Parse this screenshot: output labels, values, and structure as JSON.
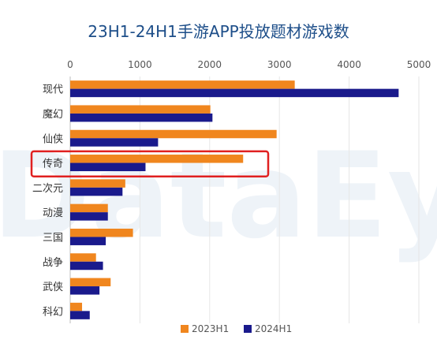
{
  "chart_data": {
    "type": "bar",
    "orientation": "horizontal",
    "title": "23H1-24H1手游APP投放题材游戏数",
    "categories": [
      "现代",
      "魔幻",
      "仙侠",
      "传奇",
      "二次元",
      "动漫",
      "三国",
      "战争",
      "武侠",
      "科幻"
    ],
    "series": [
      {
        "name": "2023H1",
        "color": "#f0861e",
        "values": [
          3220,
          2010,
          2960,
          2480,
          790,
          540,
          900,
          370,
          580,
          170
        ]
      },
      {
        "name": "2024H1",
        "color": "#1a1a8c",
        "values": [
          4710,
          2040,
          1260,
          1080,
          750,
          540,
          510,
          470,
          420,
          280
        ]
      }
    ],
    "xlim": [
      0,
      5000
    ],
    "xticks": [
      0,
      1000,
      2000,
      3000,
      4000,
      5000
    ],
    "axis_position": "top",
    "grid": true,
    "legend_position": "bottom",
    "highlight": {
      "category": "传奇",
      "color": "#e02020"
    },
    "watermark": "DataEye"
  }
}
